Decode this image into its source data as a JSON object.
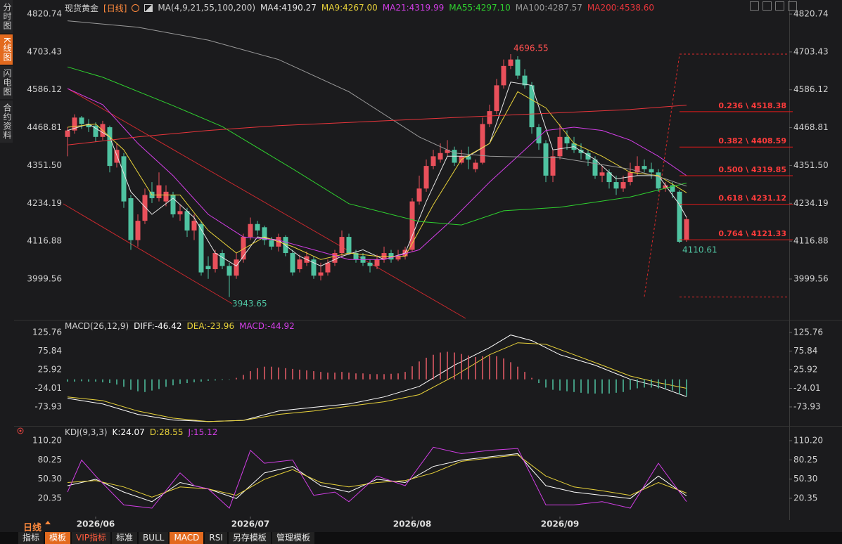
{
  "sidebar_tabs": [
    "分时图",
    "K线图",
    "闪电图",
    "合约资料"
  ],
  "toolbar": {
    "period": "日线",
    "tabs": [
      "指标",
      "模板",
      "VIP指标",
      "标准",
      "BULL",
      "MACD",
      "RSI",
      "另存模板",
      "管理模板"
    ]
  },
  "chart_data": [
    {
      "type": "candlestick",
      "title": "现货黄金",
      "subtitle": "[日线]",
      "indicator": "MA(4,9,21,55,100,200)",
      "up_color": "#e9505b",
      "down_color": "#4fc3a1",
      "xlim": [
        -0.5,
        89.5
      ],
      "ylim": [
        3884,
        4847
      ],
      "yticks": [
        4820.74,
        4703.43,
        4586.12,
        4468.81,
        {
          "value": 4351.5,
          "label": "4351.50"
        },
        4234.19,
        4116.88,
        3999.56
      ],
      "open": [
        4440,
        4460,
        4500,
        4480,
        4475,
        4440,
        4470,
        4360,
        4380,
        4250,
        4120,
        4180,
        4270,
        4250,
        4240,
        4260,
        4200,
        4210,
        4150,
        4170,
        4040,
        4030,
        4080,
        4040,
        4010,
        4060,
        4130,
        4170,
        4160,
        4120,
        4100,
        4130,
        4080,
        4030,
        4050,
        4060,
        4010,
        4020,
        4050,
        4080,
        4130,
        4080,
        4070,
        4050,
        4040,
        4060,
        4080,
        4060,
        4070,
        4090,
        4240,
        4280,
        4350,
        4370,
        4390,
        4400,
        4360,
        4380,
        4340,
        4360,
        4480,
        4520,
        4600,
        4660,
        4680,
        4630,
        4600,
        4470,
        4420,
        4320,
        4380,
        4440,
        4420,
        4400,
        4390,
        4370,
        4320,
        4330,
        4300,
        4280,
        4300,
        4330,
        4350,
        4340,
        4330,
        4280,
        4290,
        4270,
        4120
      ],
      "high": [
        4470,
        4510,
        4505,
        4495,
        4485,
        4490,
        4475,
        4420,
        4390,
        4260,
        4200,
        4280,
        4300,
        4330,
        4290,
        4270,
        4230,
        4220,
        4200,
        4180,
        4070,
        4090,
        4090,
        4050,
        4080,
        4140,
        4190,
        4180,
        4165,
        4130,
        4140,
        4135,
        4090,
        4075,
        4085,
        4070,
        4050,
        4060,
        4090,
        4150,
        4140,
        4090,
        4080,
        4060,
        4075,
        4100,
        4090,
        4090,
        4100,
        4250,
        4320,
        4370,
        4400,
        4420,
        4430,
        4410,
        4400,
        4410,
        4370,
        4500,
        4540,
        4620,
        4680,
        4696.55,
        4690,
        4650,
        4610,
        4480,
        4430,
        4400,
        4480,
        4460,
        4440,
        4420,
        4400,
        4380,
        4350,
        4340,
        4320,
        4320,
        4360,
        4380,
        4370,
        4360,
        4340,
        4300,
        4300,
        4275,
        4190
      ],
      "low": [
        4380,
        4450,
        4465,
        4455,
        4425,
        4430,
        4330,
        4345,
        4220,
        4090,
        4100,
        4170,
        4235,
        4240,
        4225,
        4190,
        4180,
        4130,
        4120,
        4010,
        4000,
        4020,
        4030,
        3943.65,
        4000,
        4050,
        4120,
        4135,
        4105,
        4090,
        4085,
        4070,
        4010,
        4020,
        4040,
        4000,
        3995,
        4010,
        4040,
        4070,
        4075,
        4050,
        4040,
        4020,
        4030,
        4050,
        4050,
        4055,
        4060,
        4085,
        4230,
        4270,
        4340,
        4360,
        4380,
        4350,
        4355,
        4340,
        4330,
        4355,
        4470,
        4510,
        4590,
        4650,
        4620,
        4590,
        4450,
        4400,
        4300,
        4300,
        4370,
        4400,
        4390,
        4370,
        4350,
        4310,
        4300,
        4280,
        4260,
        4270,
        4290,
        4320,
        4330,
        4310,
        4270,
        4270,
        4250,
        4110.61,
        4115
      ],
      "close": [
        4460,
        4500,
        4480,
        4470,
        4440,
        4480,
        4350,
        4400,
        4240,
        4120,
        4180,
        4260,
        4250,
        4290,
        4270,
        4200,
        4210,
        4150,
        4180,
        4020,
        4030,
        4080,
        4040,
        4010,
        4060,
        4130,
        4170,
        4150,
        4120,
        4100,
        4130,
        4080,
        4020,
        4060,
        4070,
        4010,
        4020,
        4050,
        4080,
        4130,
        4080,
        4060,
        4050,
        4040,
        4060,
        4080,
        4060,
        4070,
        4090,
        4240,
        4280,
        4350,
        4380,
        4390,
        4400,
        4360,
        4380,
        4370,
        4360,
        4480,
        4520,
        4600,
        4660,
        4680,
        4630,
        4600,
        4470,
        4420,
        4320,
        4380,
        4440,
        4420,
        4400,
        4390,
        4370,
        4320,
        4330,
        4300,
        4280,
        4300,
        4330,
        4350,
        4340,
        4330,
        4280,
        4290,
        4270,
        4115,
        4185
      ],
      "series": [
        {
          "name": "MA4:4190.27",
          "color": "#e6e6e6",
          "x": [
            0,
            3,
            6,
            9,
            12,
            15,
            18,
            21,
            24,
            27,
            30,
            33,
            36,
            39,
            42,
            45,
            48,
            51,
            54,
            57,
            60,
            63,
            66,
            69,
            72,
            75,
            78,
            81,
            84,
            87,
            88
          ],
          "values": [
            4460,
            4480,
            4440,
            4270,
            4200,
            4250,
            4190,
            4080,
            4040,
            4130,
            4120,
            4070,
            4040,
            4070,
            4090,
            4060,
            4080,
            4240,
            4380,
            4380,
            4420,
            4610,
            4600,
            4400,
            4410,
            4370,
            4310,
            4320,
            4320,
            4230,
            4190.27
          ]
        },
        {
          "name": "MA9:4267.00",
          "color": "#e8d23a",
          "x": [
            0,
            4,
            8,
            12,
            16,
            20,
            24,
            28,
            32,
            36,
            40,
            44,
            48,
            52,
            56,
            60,
            64,
            68,
            72,
            76,
            80,
            84,
            88
          ],
          "values": [
            4470,
            4480,
            4400,
            4260,
            4260,
            4150,
            4080,
            4130,
            4100,
            4060,
            4080,
            4070,
            4070,
            4230,
            4370,
            4420,
            4580,
            4530,
            4420,
            4380,
            4330,
            4320,
            4267
          ]
        },
        {
          "name": "MA21:4319.99",
          "color": "#d23ee6",
          "x": [
            0,
            5,
            10,
            15,
            20,
            25,
            30,
            35,
            40,
            45,
            50,
            55,
            60,
            65,
            68,
            72,
            76,
            80,
            84,
            88
          ],
          "values": [
            4590,
            4540,
            4420,
            4320,
            4200,
            4130,
            4120,
            4090,
            4060,
            4060,
            4090,
            4190,
            4300,
            4400,
            4460,
            4470,
            4460,
            4430,
            4380,
            4319.99
          ]
        },
        {
          "name": "MA55:4297.10",
          "color": "#2fd12f",
          "x": [
            0,
            5,
            15,
            22,
            32,
            40,
            50,
            56,
            62,
            70,
            80,
            88
          ],
          "values": [
            4657,
            4625,
            4537,
            4472,
            4341,
            4233,
            4178,
            4167,
            4211,
            4222,
            4254,
            4297.1
          ]
        },
        {
          "name": "MA100:4287.57",
          "color": "#9a9a9a",
          "x": [
            0,
            10,
            20,
            30,
            40,
            50,
            55,
            60,
            70,
            80,
            85,
            88
          ],
          "values": [
            4800,
            4780,
            4740,
            4680,
            4580,
            4440,
            4390,
            4380,
            4375,
            4340,
            4310,
            4287.57
          ]
        },
        {
          "name": "MA200:4538.60",
          "color": "#e8353b",
          "x": [
            0,
            10,
            20,
            30,
            40,
            50,
            60,
            70,
            80,
            88
          ],
          "values": [
            4415,
            4440,
            4460,
            4475,
            4485,
            4495,
            4505,
            4515,
            4525,
            4538.6
          ]
        }
      ],
      "fib_levels": [
        {
          "value": 4518.38,
          "label": "0.236 \\ 4518.38"
        },
        {
          "value": 4408.59,
          "label": "0.382 \\ 4408.59"
        },
        {
          "value": 4319.85,
          "label": "0.500 \\ 4319.85"
        },
        {
          "value": 4231.12,
          "label": "0.618 \\ 4231.12"
        },
        {
          "value": 4121.33,
          "label": "0.764 \\ 4121.33"
        }
      ]
    },
    {
      "type": "macd",
      "title": "MACD(26,12,9)",
      "up_color": "#e95d68",
      "down_color": "#4fc3a1",
      "xlim": [
        -0.5,
        89.5
      ],
      "ylim": [
        -123,
        150.3
      ],
      "yticks": [
        125.76,
        75.84,
        25.92,
        -24.01,
        -73.93
      ],
      "series": [
        {
          "name": "DIFF:-46.42",
          "color": "#ffffff",
          "x": [
            0,
            5,
            10,
            15,
            20,
            25,
            30,
            35,
            40,
            45,
            50,
            55,
            60,
            63,
            66,
            70,
            75,
            80,
            84,
            88
          ],
          "values": [
            -51,
            -66,
            -94,
            -109,
            -113,
            -110,
            -85,
            -75,
            -66,
            -47,
            -19,
            38,
            85,
            119,
            104,
            66,
            38,
            0,
            -19,
            -46.42
          ]
        },
        {
          "name": "DEA:-23.96",
          "color": "#e8d23a",
          "x": [
            0,
            5,
            10,
            15,
            20,
            25,
            30,
            35,
            40,
            45,
            50,
            55,
            60,
            64,
            68,
            72,
            76,
            80,
            84,
            88
          ],
          "values": [
            -47,
            -57,
            -85,
            -104,
            -113,
            -110,
            -94,
            -85,
            -72,
            -60,
            -41,
            9,
            66,
            98,
            94,
            66,
            38,
            9,
            -9,
            -23.96
          ]
        },
        {
          "name": "MACD:-44.92",
          "color": "#d23ee6",
          "values": [
            -6,
            -6,
            -5,
            -6,
            -6,
            -8,
            -10,
            -14,
            -20,
            -28,
            -32,
            -34,
            -30,
            -26,
            -20,
            -16,
            -12,
            -10,
            -8,
            -6,
            -4,
            -3,
            -2,
            -1,
            4,
            12,
            22,
            30,
            34,
            34,
            32,
            30,
            28,
            26,
            24,
            22,
            20,
            18,
            18,
            20,
            18,
            16,
            16,
            14,
            14,
            14,
            15,
            16,
            20,
            35,
            48,
            58,
            66,
            72,
            74,
            72,
            68,
            64,
            60,
            62,
            64,
            62,
            56,
            46,
            34,
            20,
            4,
            -10,
            -22,
            -28,
            -30,
            -32,
            -34,
            -36,
            -38,
            -38,
            -38,
            -38,
            -36,
            -34,
            -28,
            -24,
            -22,
            -22,
            -24,
            -26,
            -30,
            -40,
            -44.92
          ]
        }
      ]
    },
    {
      "type": "line",
      "title": "KDJ(9,3,3)",
      "xlim": [
        -0.5,
        89.5
      ],
      "ylim": [
        -8.2,
        131
      ],
      "yticks": [
        {
          "value": 110.2,
          "label": "110.20"
        },
        80.25,
        {
          "value": 50.3,
          "label": "50.30"
        },
        20.35
      ],
      "xticks": [
        {
          "value": 4,
          "label": "2026/06"
        },
        {
          "value": 26,
          "label": "2026/07"
        },
        {
          "value": 49,
          "label": "2026/08"
        },
        {
          "value": 70,
          "label": "2026/09"
        }
      ],
      "series": [
        {
          "name": "K:24.07",
          "color": "#ffffff",
          "x": [
            0,
            4,
            8,
            12,
            16,
            20,
            24,
            28,
            32,
            36,
            40,
            44,
            48,
            52,
            56,
            60,
            64,
            68,
            72,
            76,
            80,
            84,
            88
          ],
          "values": [
            40,
            50,
            30,
            15,
            45,
            35,
            20,
            60,
            70,
            40,
            30,
            50,
            45,
            70,
            80,
            85,
            90,
            40,
            30,
            25,
            20,
            55,
            24.07
          ]
        },
        {
          "name": "D:28.55",
          "color": "#e8d23a",
          "x": [
            0,
            4,
            8,
            12,
            16,
            20,
            24,
            28,
            32,
            36,
            40,
            44,
            48,
            52,
            56,
            60,
            64,
            68,
            72,
            76,
            80,
            84,
            88
          ],
          "values": [
            45,
            48,
            38,
            22,
            38,
            35,
            25,
            50,
            65,
            45,
            38,
            45,
            48,
            60,
            78,
            83,
            88,
            55,
            38,
            32,
            25,
            45,
            28.55
          ]
        },
        {
          "name": "J:15.12",
          "color": "#d23ee6",
          "x": [
            0,
            2,
            4,
            8,
            12,
            16,
            18,
            20,
            23,
            26,
            28,
            32,
            35,
            38,
            40,
            44,
            48,
            52,
            56,
            60,
            64,
            68,
            72,
            76,
            80,
            84,
            88
          ],
          "values": [
            30,
            80,
            55,
            10,
            5,
            60,
            40,
            35,
            5,
            95,
            75,
            80,
            25,
            30,
            15,
            55,
            40,
            100,
            90,
            95,
            98,
            10,
            10,
            15,
            5,
            75,
            15.12
          ]
        }
      ]
    }
  ]
}
